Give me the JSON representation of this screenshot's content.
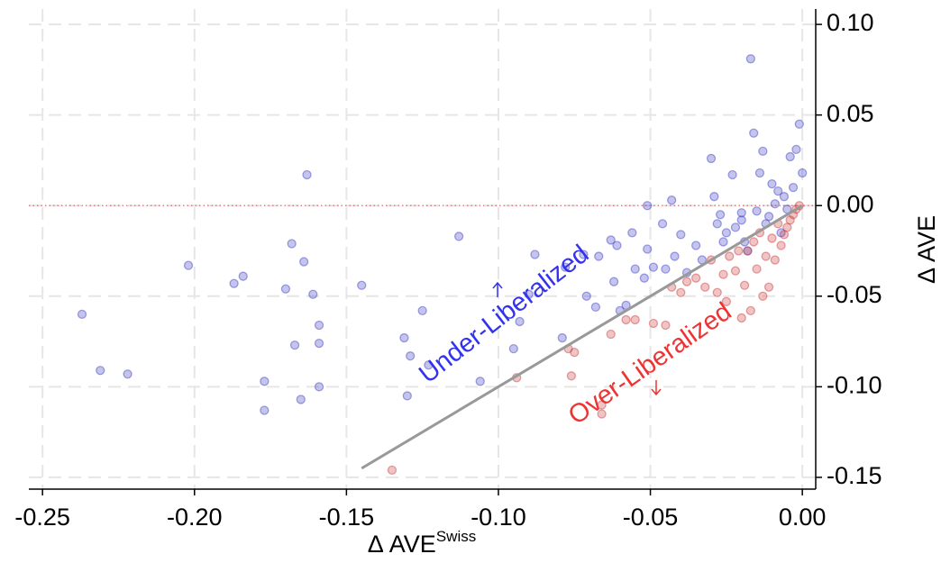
{
  "chart_data": {
    "type": "scatter",
    "x_label": "Δ AVE",
    "x_label_superscript": "Swiss",
    "y_label": "Δ AVE",
    "xlim": [
      -0.2545,
      0.0044
    ],
    "ylim": [
      -0.1565,
      0.1085
    ],
    "xticks": [
      {
        "value": -0.25,
        "label": "-0.25"
      },
      {
        "value": -0.2,
        "label": "-0.20"
      },
      {
        "value": -0.15,
        "label": "-0.15"
      },
      {
        "value": -0.1,
        "label": "-0.10"
      },
      {
        "value": -0.05,
        "label": "-0.05"
      },
      {
        "value": 0,
        "label": "0.00"
      }
    ],
    "yticks": [
      {
        "value": 0.1,
        "label": "0.10"
      },
      {
        "value": 0.05,
        "label": "0.05"
      },
      {
        "value": 0,
        "label": "0.00"
      },
      {
        "value": -0.05,
        "label": "-0.05"
      },
      {
        "value": -0.1,
        "label": "-0.10"
      },
      {
        "value": -0.15,
        "label": "-0.15"
      }
    ],
    "grid": true,
    "y_axis_side": "right",
    "zero_line": {
      "y": 0,
      "color": "#e08080"
    },
    "reference_line": {
      "x": [
        -0.145,
        0
      ],
      "y": [
        -0.145,
        0
      ],
      "color": "#999999"
    },
    "annotations": [
      {
        "text": "Under-Liberalized",
        "color": "#3333ee"
      },
      {
        "text": "Over-Liberalized",
        "color": "#ee3333"
      }
    ],
    "series": [
      {
        "color": "#3a3ac0",
        "x": [
          -0.237,
          -0.231,
          -0.222,
          -0.202,
          -0.187,
          -0.184,
          -0.177,
          -0.177,
          -0.17,
          -0.168,
          -0.167,
          -0.165,
          -0.164,
          -0.163,
          -0.161,
          -0.159,
          -0.159,
          -0.159,
          -0.145,
          -0.131,
          -0.13,
          -0.129,
          -0.125,
          -0.123,
          -0.113,
          -0.106,
          -0.095,
          -0.093,
          -0.09,
          -0.088,
          -0.079,
          -0.078,
          -0.072,
          -0.071,
          -0.068,
          -0.067,
          -0.063,
          -0.062,
          -0.061,
          -0.06,
          -0.058,
          -0.056,
          -0.055,
          -0.052,
          -0.051,
          -0.051,
          -0.049,
          -0.046,
          -0.045,
          -0.043,
          -0.042,
          -0.04,
          -0.038,
          -0.035,
          -0.033,
          -0.03,
          -0.029,
          -0.028,
          -0.027,
          -0.025,
          -0.023,
          -0.02,
          -0.019,
          -0.018,
          -0.017,
          -0.016,
          -0.015,
          -0.014,
          -0.013,
          -0.012,
          -0.01,
          -0.009,
          -0.008,
          -0.007,
          -0.006,
          -0.005,
          -0.004,
          -0.003,
          -0.002,
          -0.001,
          0.0,
          -0.02,
          -0.022,
          -0.026,
          -0.011
        ],
        "y": [
          -0.06,
          -0.091,
          -0.093,
          -0.033,
          -0.043,
          -0.039,
          -0.097,
          -0.113,
          -0.046,
          -0.021,
          -0.077,
          -0.107,
          -0.031,
          0.017,
          -0.049,
          -0.1,
          -0.076,
          -0.066,
          -0.044,
          -0.073,
          -0.105,
          -0.083,
          -0.058,
          -0.088,
          -0.017,
          -0.097,
          -0.079,
          -0.064,
          -0.049,
          -0.027,
          -0.073,
          -0.034,
          -0.027,
          -0.05,
          -0.056,
          -0.028,
          -0.019,
          -0.042,
          -0.022,
          -0.058,
          -0.055,
          -0.015,
          -0.035,
          -0.04,
          -0.024,
          0.0,
          -0.034,
          -0.01,
          -0.035,
          0.003,
          -0.028,
          -0.016,
          -0.037,
          -0.022,
          -0.03,
          0.026,
          0.005,
          -0.01,
          -0.005,
          -0.015,
          0.017,
          -0.008,
          -0.02,
          -0.025,
          0.081,
          0.04,
          -0.003,
          0.018,
          0.03,
          -0.01,
          0.012,
          0.001,
          0.008,
          -0.015,
          0.005,
          -0.002,
          0.027,
          0.01,
          0.031,
          0.045,
          0.018,
          -0.004,
          -0.012,
          -0.02,
          -0.006
        ]
      },
      {
        "color": "#c83a3a",
        "x": [
          -0.135,
          -0.094,
          -0.077,
          -0.076,
          -0.075,
          -0.066,
          -0.066,
          -0.063,
          -0.058,
          -0.055,
          -0.049,
          -0.045,
          -0.043,
          -0.04,
          -0.038,
          -0.035,
          -0.032,
          -0.03,
          -0.028,
          -0.026,
          -0.025,
          -0.024,
          -0.022,
          -0.02,
          -0.019,
          -0.018,
          -0.017,
          -0.016,
          -0.015,
          -0.013,
          -0.012,
          -0.011,
          -0.01,
          -0.009,
          -0.008,
          -0.007,
          -0.005,
          -0.004,
          -0.003,
          -0.002,
          -0.001,
          -0.014,
          -0.021,
          -0.006
        ],
        "y": [
          -0.146,
          -0.095,
          -0.079,
          -0.094,
          -0.081,
          -0.115,
          -0.11,
          -0.071,
          -0.063,
          -0.063,
          -0.065,
          -0.066,
          -0.045,
          -0.048,
          -0.042,
          -0.04,
          -0.045,
          -0.03,
          -0.048,
          -0.038,
          -0.053,
          -0.028,
          -0.036,
          -0.062,
          -0.044,
          -0.025,
          -0.058,
          -0.02,
          -0.035,
          -0.05,
          -0.028,
          -0.045,
          -0.018,
          -0.03,
          -0.01,
          -0.022,
          -0.012,
          -0.008,
          -0.005,
          -0.002,
          0.0,
          -0.015,
          -0.025,
          -0.016
        ]
      }
    ]
  }
}
